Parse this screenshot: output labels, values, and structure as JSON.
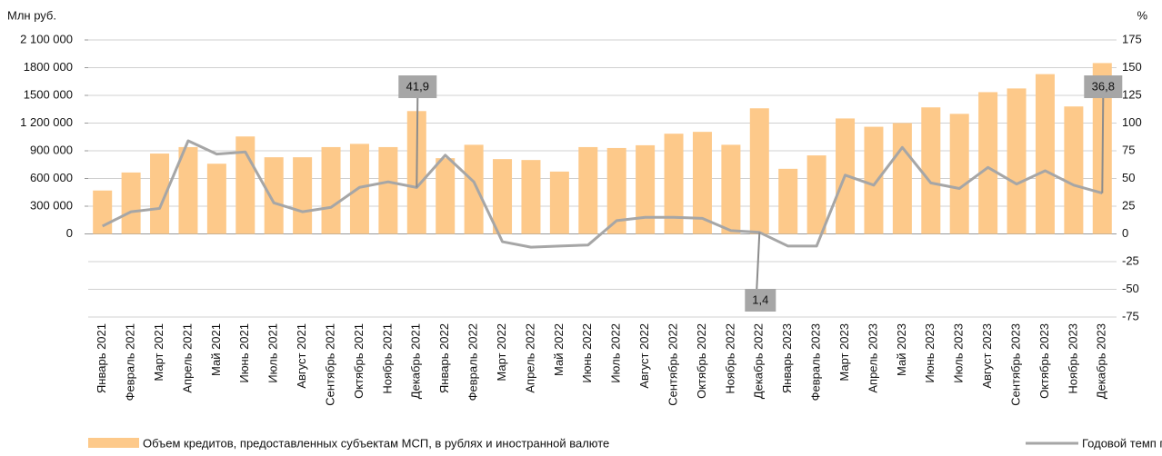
{
  "chart_data": {
    "type": "bar_line",
    "y_label": "Млн руб.",
    "y2_label": "%",
    "categories": [
      "Январь 2021",
      "Февраль 2021",
      "Март 2021",
      "Апрель 2021",
      "Май 2021",
      "Июнь 2021",
      "Июль 2021",
      "Август 2021",
      "Сентябрь 2021",
      "Октябрь 2021",
      "Ноябрь 2021",
      "Декабрь 2021",
      "Январь 2022",
      "Февраль 2022",
      "Март 2022",
      "Апрель 2022",
      "Май 2022",
      "Июнь 2022",
      "Июль 2022",
      "Август 2022",
      "Сентябрь 2022",
      "Октябрь 2022",
      "Ноябрь 2022",
      "Декабрь 2022",
      "Январь 2023",
      "Февраль 2023",
      "Март 2023",
      "Апрель 2023",
      "Май 2023",
      "Июнь 2023",
      "Июль 2023",
      "Август 2023",
      "Сентябрь 2023",
      "Октябрь 2023",
      "Ноябрь 2023",
      "Декабрь 2023"
    ],
    "series": [
      {
        "name": "Объем кредитов, предоставленных субъектам МСП, в рублях и иностранной валюте",
        "type": "bar",
        "color": "#fdc98a",
        "values": [
          470000,
          665000,
          870000,
          940000,
          760000,
          1055000,
          830000,
          830000,
          940000,
          975000,
          940000,
          1330000,
          820000,
          965000,
          810000,
          800000,
          675000,
          940000,
          930000,
          960000,
          1085000,
          1105000,
          965000,
          1360000,
          705000,
          850000,
          1250000,
          1160000,
          1200000,
          1370000,
          1300000,
          1535000,
          1575000,
          1730000,
          1380000,
          1850000
        ]
      },
      {
        "name": "Годовой темп прироста (правая шкала)",
        "type": "line",
        "axis": "y2",
        "color": "#a6a6a6",
        "values": [
          7,
          20,
          23,
          84,
          72,
          74,
          28,
          20,
          24,
          42,
          47,
          41.9,
          71,
          47,
          -7,
          -12,
          -11,
          -10,
          12,
          15,
          15,
          14,
          3,
          1.4,
          -11,
          -11,
          53,
          44,
          78,
          46,
          41,
          60,
          45,
          57,
          44,
          36.8
        ],
        "value_labels": [
          null,
          null,
          null,
          null,
          null,
          null,
          null,
          null,
          null,
          null,
          null,
          "41,9",
          null,
          null,
          null,
          null,
          null,
          null,
          null,
          null,
          null,
          null,
          null,
          "1,4",
          null,
          null,
          null,
          null,
          null,
          null,
          null,
          null,
          null,
          null,
          null,
          "36,8"
        ]
      }
    ],
    "ylim": [
      -900000,
      2100000
    ],
    "yticks": [
      {
        "value": 0,
        "label": "0"
      },
      {
        "value": 300000,
        "label": "300 000"
      },
      {
        "value": 600000,
        "label": "600 000"
      },
      {
        "value": 900000,
        "label": "900 000"
      },
      {
        "value": 1200000,
        "label": "1 200 000"
      },
      {
        "value": 1500000,
        "label": "1500 000"
      },
      {
        "value": 1800000,
        "label": "1800 000"
      },
      {
        "value": 2100000,
        "label": "2 100 000"
      }
    ],
    "y2lim": [
      -75,
      175
    ],
    "y2ticks": [
      -75,
      -50,
      -25,
      0,
      25,
      50,
      75,
      100,
      125,
      150,
      175
    ],
    "grid": true
  }
}
